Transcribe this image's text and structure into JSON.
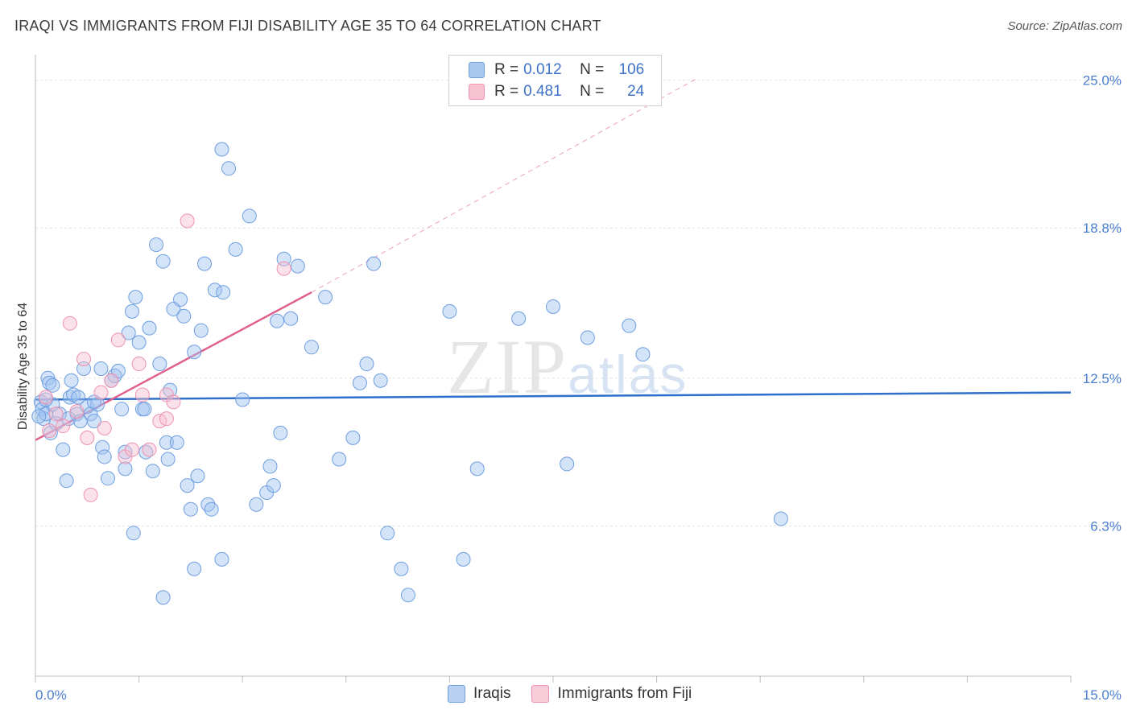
{
  "title": "IRAQI VS IMMIGRANTS FROM FIJI DISABILITY AGE 35 TO 64 CORRELATION CHART",
  "source": "Source: ZipAtlas.com",
  "watermark": {
    "zip": "ZIP",
    "atlas": "atlas"
  },
  "legend": {
    "rows": [
      {
        "r_label": "R =",
        "r_value": "0.012",
        "n_label": "N =",
        "n_value": "106",
        "color": "#a9c8f0",
        "border": "#6f9ee0"
      },
      {
        "r_label": "R =",
        "r_value": "0.481",
        "n_label": "N =",
        "n_value": "24",
        "color": "#f7c3d3",
        "border": "#ee92b0"
      }
    ]
  },
  "bottom_legend": [
    {
      "label": "Iraqis",
      "color": "#b8d1f3",
      "border": "#6f9ee0"
    },
    {
      "label": "Immigrants from Fiji",
      "color": "#f8ccd9",
      "border": "#ee92b0"
    }
  ],
  "chart_data": {
    "type": "scatter",
    "title": "IRAQI VS IMMIGRANTS FROM FIJI DISABILITY AGE 35 TO 64 CORRELATION CHART",
    "xlabel": "",
    "ylabel": "Disability Age 35 to 64",
    "xlim": [
      0,
      15
    ],
    "ylim": [
      0,
      26
    ],
    "x_tick_labels": [
      "0.0%",
      "15.0%"
    ],
    "y_ticks": [
      6.3,
      12.5,
      18.8,
      25.0
    ],
    "y_tick_labels": [
      "6.3%",
      "12.5%",
      "18.8%",
      "25.0%"
    ],
    "series": [
      {
        "name": "Iraqis",
        "color": "#6f9ee0",
        "fill": "rgba(160,195,240,0.45)",
        "trend": {
          "x0": 0.0,
          "y0": 11.6,
          "x1": 15.0,
          "y1": 11.9,
          "color": "#2e6fcc"
        },
        "points": [
          [
            0.08,
            11.5
          ],
          [
            0.1,
            11.2
          ],
          [
            0.12,
            10.8
          ],
          [
            0.15,
            11.0
          ],
          [
            0.18,
            12.5
          ],
          [
            0.2,
            12.3
          ],
          [
            0.22,
            10.2
          ],
          [
            0.25,
            11.4
          ],
          [
            0.3,
            10.6
          ],
          [
            0.35,
            11.0
          ],
          [
            0.4,
            9.5
          ],
          [
            0.45,
            8.2
          ],
          [
            0.5,
            11.7
          ],
          [
            0.52,
            12.4
          ],
          [
            0.55,
            11.8
          ],
          [
            0.6,
            11.0
          ],
          [
            0.65,
            10.7
          ],
          [
            0.7,
            12.9
          ],
          [
            0.75,
            11.3
          ],
          [
            0.8,
            11.0
          ],
          [
            0.85,
            10.7
          ],
          [
            0.9,
            11.4
          ],
          [
            0.95,
            12.9
          ],
          [
            0.97,
            9.6
          ],
          [
            1.0,
            9.2
          ],
          [
            1.05,
            8.3
          ],
          [
            1.1,
            12.4
          ],
          [
            1.15,
            12.6
          ],
          [
            1.2,
            12.8
          ],
          [
            1.25,
            11.2
          ],
          [
            1.3,
            8.7
          ],
          [
            1.35,
            14.4
          ],
          [
            1.4,
            15.3
          ],
          [
            1.45,
            15.9
          ],
          [
            1.5,
            14.0
          ],
          [
            1.55,
            11.2
          ],
          [
            1.6,
            9.4
          ],
          [
            1.65,
            14.6
          ],
          [
            1.7,
            8.6
          ],
          [
            1.75,
            18.1
          ],
          [
            1.8,
            13.1
          ],
          [
            1.85,
            17.4
          ],
          [
            1.9,
            9.8
          ],
          [
            1.95,
            12.0
          ],
          [
            2.0,
            15.4
          ],
          [
            2.05,
            9.8
          ],
          [
            2.1,
            15.8
          ],
          [
            2.15,
            15.1
          ],
          [
            2.2,
            8.0
          ],
          [
            2.25,
            7.0
          ],
          [
            2.3,
            13.6
          ],
          [
            2.35,
            8.4
          ],
          [
            2.4,
            14.5
          ],
          [
            2.45,
            17.3
          ],
          [
            2.5,
            7.2
          ],
          [
            2.6,
            16.2
          ],
          [
            2.7,
            22.1
          ],
          [
            2.8,
            21.3
          ],
          [
            2.9,
            17.9
          ],
          [
            3.0,
            11.6
          ],
          [
            3.1,
            19.3
          ],
          [
            3.2,
            7.2
          ],
          [
            3.4,
            8.8
          ],
          [
            3.5,
            14.9
          ],
          [
            3.55,
            10.2
          ],
          [
            3.6,
            17.5
          ],
          [
            3.7,
            15.0
          ],
          [
            3.8,
            17.2
          ],
          [
            4.0,
            13.8
          ],
          [
            4.2,
            15.9
          ],
          [
            4.4,
            9.1
          ],
          [
            4.6,
            10.0
          ],
          [
            4.7,
            12.3
          ],
          [
            4.8,
            13.1
          ],
          [
            4.9,
            17.3
          ],
          [
            5.0,
            12.4
          ],
          [
            5.1,
            6.0
          ],
          [
            5.3,
            4.5
          ],
          [
            5.4,
            3.4
          ],
          [
            6.0,
            15.3
          ],
          [
            6.2,
            4.9
          ],
          [
            6.4,
            8.7
          ],
          [
            7.0,
            15.0
          ],
          [
            7.5,
            15.5
          ],
          [
            7.7,
            8.9
          ],
          [
            8.0,
            14.2
          ],
          [
            8.6,
            14.7
          ],
          [
            8.8,
            13.5
          ],
          [
            10.8,
            6.6
          ],
          [
            1.42,
            6.0
          ],
          [
            1.85,
            3.3
          ],
          [
            2.3,
            4.5
          ],
          [
            2.7,
            4.9
          ],
          [
            2.55,
            7.0
          ],
          [
            3.35,
            7.7
          ],
          [
            2.72,
            16.1
          ],
          [
            1.3,
            9.4
          ],
          [
            0.62,
            11.7
          ],
          [
            0.15,
            11.6
          ],
          [
            0.05,
            10.9
          ],
          [
            0.25,
            12.2
          ],
          [
            0.85,
            11.5
          ],
          [
            1.58,
            11.2
          ],
          [
            1.92,
            9.1
          ],
          [
            3.45,
            8.0
          ],
          [
            0.48,
            10.8
          ]
        ]
      },
      {
        "name": "Immigrants from Fiji",
        "color": "#ee92b0",
        "fill": "rgba(247,190,208,0.45)",
        "trend": {
          "x0": 0.0,
          "y0": 9.9,
          "x1": 4.0,
          "y1": 16.1,
          "color": "#e0608e",
          "ext": {
            "x0": 4.0,
            "y0": 16.1,
            "x1": 9.6,
            "y1": 25.1
          }
        },
        "points": [
          [
            0.2,
            10.3
          ],
          [
            0.3,
            11.0
          ],
          [
            0.4,
            10.5
          ],
          [
            0.5,
            14.8
          ],
          [
            0.6,
            11.1
          ],
          [
            0.7,
            13.3
          ],
          [
            0.75,
            10.0
          ],
          [
            0.8,
            7.6
          ],
          [
            0.95,
            11.9
          ],
          [
            1.0,
            10.4
          ],
          [
            1.1,
            12.4
          ],
          [
            1.2,
            14.1
          ],
          [
            1.3,
            9.2
          ],
          [
            1.4,
            9.5
          ],
          [
            1.5,
            13.1
          ],
          [
            1.55,
            11.8
          ],
          [
            1.65,
            9.5
          ],
          [
            1.8,
            10.7
          ],
          [
            1.9,
            11.8
          ],
          [
            2.0,
            11.5
          ],
          [
            2.2,
            19.1
          ],
          [
            3.6,
            17.1
          ],
          [
            0.15,
            11.7
          ],
          [
            1.9,
            10.8
          ]
        ]
      }
    ]
  }
}
